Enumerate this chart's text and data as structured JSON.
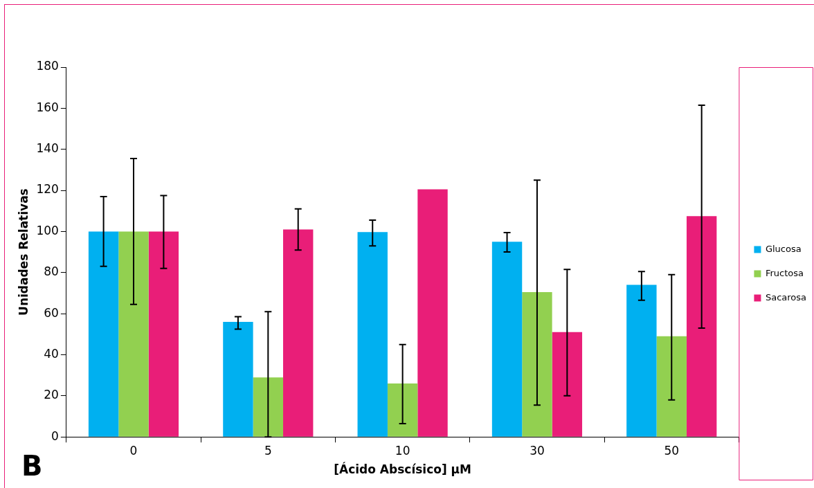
{
  "chart_data": {
    "type": "bar",
    "categories": [
      "0",
      "5",
      "10",
      "30",
      "50"
    ],
    "series": [
      {
        "name": "Glucosa",
        "color": "#00b0f0",
        "values": [
          100,
          56,
          99.7,
          95,
          74
        ],
        "errors": [
          [
            83,
            117
          ],
          [
            52.5,
            58.5
          ],
          [
            93,
            105.5
          ],
          [
            90,
            99.5
          ],
          [
            66.5,
            80.5
          ]
        ]
      },
      {
        "name": "Fructosa",
        "color": "#92d050",
        "values": [
          100,
          29,
          26,
          70.5,
          49
        ],
        "errors": [
          [
            64.5,
            135.5
          ],
          [
            0,
            61
          ],
          [
            6.5,
            45
          ],
          [
            15.5,
            125
          ],
          [
            18,
            79
          ]
        ]
      },
      {
        "name": "Sacarosa",
        "color": "#e91e78",
        "values": [
          100,
          101,
          120.5,
          51,
          107.5
        ],
        "errors": [
          [
            82,
            117.5
          ],
          [
            91,
            111
          ],
          null,
          [
            20,
            81.5
          ],
          [
            53,
            161.5
          ]
        ]
      }
    ],
    "ylim": [
      0,
      180
    ],
    "yticks": [
      0,
      20,
      40,
      60,
      80,
      100,
      120,
      140,
      160,
      180
    ],
    "xlabel": "[Ácido Abscísico] µM",
    "ylabel": "Unidades Relativas",
    "annotations": [
      "B"
    ],
    "legend": "right",
    "grid": false
  }
}
